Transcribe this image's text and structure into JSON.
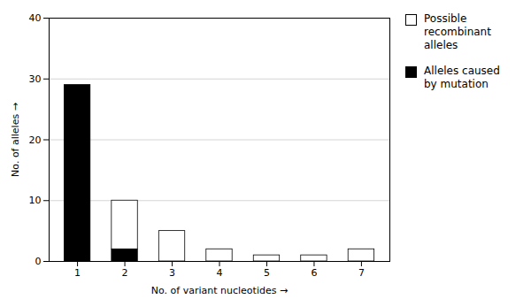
{
  "chart_data": {
    "type": "bar",
    "stacked": true,
    "xlabel": "No. of variant nucleotides",
    "ylabel": "No. of alleles",
    "x": [
      1,
      2,
      3,
      4,
      5,
      6,
      7
    ],
    "series": [
      {
        "name": "Alleles caused\nby mutation",
        "color": "#000000",
        "values": [
          29,
          2,
          0,
          0,
          0,
          0,
          0
        ]
      },
      {
        "name": "Possible\nrecombinant\nalleles",
        "color": "#ffffff",
        "values": [
          0,
          8,
          5,
          2,
          1,
          1,
          2
        ]
      }
    ],
    "xlim": [
      0.4,
      7.6
    ],
    "xticks": [
      1,
      2,
      3,
      4,
      5,
      6,
      7
    ],
    "ylim": [
      0,
      40
    ],
    "yticks": [
      0,
      10,
      20,
      30,
      40
    ],
    "grid": true,
    "legend": "right"
  }
}
